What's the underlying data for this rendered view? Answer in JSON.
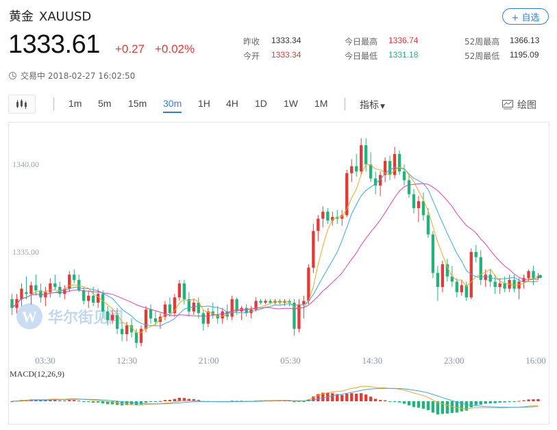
{
  "header": {
    "name": "黄金",
    "symbol": "XAUUSD",
    "follow_label": "+ 自选",
    "price": "1333.61",
    "change": "+0.27",
    "change_pct": "+0.02%",
    "status": "交易中 2018-02-27 16:02:50"
  },
  "stats": {
    "prev_close_label": "昨收",
    "prev_close": "1333.34",
    "open_label": "今开",
    "open": "1333.34",
    "high_label": "今日最高",
    "high": "1336.74",
    "low_label": "今日最低",
    "low": "1331.18",
    "w52_high_label": "52周最高",
    "w52_high": "1366.13",
    "w52_low_label": "52周最低",
    "w52_low": "1195.09"
  },
  "toolbar": {
    "periods": [
      "1m",
      "5m",
      "15m",
      "30m",
      "1H",
      "4H",
      "1D",
      "1W",
      "1M"
    ],
    "active_period": "30m",
    "indicator_label": "指标",
    "draw_label": "绘图"
  },
  "watermark": "华尔街见闻",
  "colors": {
    "up": "#e53935",
    "down": "#20b37a",
    "ma_fast": "#f5a623",
    "ma_mid": "#38a8e8",
    "ma_slow": "#e040b0",
    "accent": "#2d7de0"
  },
  "chart_data": [
    {
      "type": "candlestick",
      "interval": "30m",
      "ylim": [
        1329.4,
        1342.2
      ],
      "y_ticks": [
        1340.0,
        1335.0
      ],
      "y_tick_labels": [
        "1340.00",
        "1335.00"
      ],
      "x_tick_labels": [
        "03:30",
        "12:30",
        "21:00",
        "05:30",
        "14:30",
        "23:00",
        "16:00"
      ],
      "candles": [
        [
          1332.3,
          1332.6,
          1331.4,
          1331.8
        ],
        [
          1331.8,
          1332.6,
          1331.5,
          1332.3
        ],
        [
          1332.3,
          1333.2,
          1331.9,
          1332.9
        ],
        [
          1332.7,
          1333.6,
          1332.3,
          1332.6
        ],
        [
          1332.6,
          1333.3,
          1332.0,
          1333.1
        ],
        [
          1333.1,
          1333.7,
          1332.5,
          1332.8
        ],
        [
          1332.8,
          1333.2,
          1332.1,
          1332.4
        ],
        [
          1332.4,
          1333.0,
          1331.9,
          1332.7
        ],
        [
          1332.7,
          1333.5,
          1332.4,
          1333.2
        ],
        [
          1333.2,
          1333.7,
          1332.8,
          1333.0
        ],
        [
          1333.0,
          1333.3,
          1332.4,
          1332.6
        ],
        [
          1332.6,
          1333.1,
          1332.3,
          1332.9
        ],
        [
          1332.9,
          1333.9,
          1332.7,
          1333.7
        ],
        [
          1333.7,
          1334.0,
          1333.2,
          1333.4
        ],
        [
          1333.4,
          1333.7,
          1332.7,
          1332.8
        ],
        [
          1332.8,
          1333.0,
          1332.0,
          1332.2
        ],
        [
          1332.2,
          1332.8,
          1331.8,
          1332.5
        ],
        [
          1332.5,
          1333.0,
          1331.9,
          1332.1
        ],
        [
          1332.1,
          1332.9,
          1331.8,
          1332.6
        ],
        [
          1332.6,
          1332.8,
          1331.2,
          1331.6
        ],
        [
          1331.6,
          1331.9,
          1330.8,
          1331.1
        ],
        [
          1331.1,
          1331.7,
          1330.9,
          1331.4
        ],
        [
          1331.4,
          1331.8,
          1330.3,
          1330.6
        ],
        [
          1330.6,
          1331.0,
          1329.9,
          1330.3
        ],
        [
          1330.3,
          1331.0,
          1329.9,
          1330.8
        ],
        [
          1330.8,
          1331.2,
          1330.1,
          1330.4
        ],
        [
          1330.4,
          1330.6,
          1329.5,
          1329.8
        ],
        [
          1329.8,
          1330.8,
          1329.6,
          1330.6
        ],
        [
          1330.6,
          1331.9,
          1330.4,
          1331.7
        ],
        [
          1331.7,
          1332.0,
          1330.9,
          1331.2
        ],
        [
          1331.2,
          1331.6,
          1330.8,
          1331.0
        ],
        [
          1331.0,
          1331.5,
          1330.6,
          1331.3
        ],
        [
          1331.3,
          1332.2,
          1331.1,
          1332.0
        ],
        [
          1332.0,
          1332.4,
          1331.3,
          1331.5
        ],
        [
          1331.5,
          1332.6,
          1331.3,
          1332.4
        ],
        [
          1332.4,
          1333.4,
          1332.2,
          1333.2
        ],
        [
          1333.2,
          1333.4,
          1332.0,
          1332.3
        ],
        [
          1332.3,
          1332.7,
          1331.3,
          1331.6
        ],
        [
          1331.6,
          1332.3,
          1331.4,
          1332.1
        ],
        [
          1332.1,
          1332.4,
          1331.2,
          1331.5
        ],
        [
          1331.5,
          1331.7,
          1330.5,
          1330.9
        ],
        [
          1330.9,
          1331.8,
          1330.7,
          1331.6
        ],
        [
          1331.6,
          1332.1,
          1331.2,
          1331.4
        ],
        [
          1331.4,
          1331.9,
          1330.9,
          1331.2
        ],
        [
          1331.2,
          1331.8,
          1330.9,
          1331.6
        ],
        [
          1331.6,
          1332.0,
          1331.1,
          1331.3
        ],
        [
          1331.3,
          1332.5,
          1331.1,
          1332.3
        ],
        [
          1332.3,
          1332.4,
          1331.4,
          1331.6
        ],
        [
          1331.6,
          1331.9,
          1331.1,
          1331.8
        ],
        [
          1331.8,
          1332.0,
          1331.3,
          1331.5
        ],
        [
          1331.5,
          1331.9,
          1331.2,
          1331.7
        ],
        [
          1331.7,
          1332.4,
          1331.6,
          1332.2
        ],
        [
          1332.2,
          1332.3,
          1332.0,
          1332.1
        ],
        [
          1332.1,
          1332.3,
          1332.0,
          1332.2
        ],
        [
          1332.2,
          1332.3,
          1332.0,
          1332.1
        ],
        [
          1332.1,
          1332.3,
          1332.0,
          1332.2
        ],
        [
          1332.2,
          1332.3,
          1332.0,
          1332.1
        ],
        [
          1332.1,
          1332.3,
          1331.9,
          1332.2
        ],
        [
          1332.2,
          1332.3,
          1331.9,
          1332.1
        ],
        [
          1332.1,
          1332.3,
          1330.2,
          1330.6
        ],
        [
          1330.6,
          1332.3,
          1330.4,
          1332.0
        ],
        [
          1332.0,
          1332.5,
          1331.2,
          1332.2
        ],
        [
          1332.2,
          1334.3,
          1332.0,
          1334.1
        ],
        [
          1334.1,
          1336.6,
          1333.8,
          1336.2
        ],
        [
          1336.2,
          1337.1,
          1335.6,
          1336.9
        ],
        [
          1336.9,
          1337.6,
          1336.4,
          1337.3
        ],
        [
          1337.3,
          1337.5,
          1336.6,
          1336.8
        ],
        [
          1336.8,
          1337.3,
          1336.5,
          1337.0
        ],
        [
          1337.0,
          1337.4,
          1336.6,
          1336.9
        ],
        [
          1336.9,
          1337.4,
          1336.5,
          1337.1
        ],
        [
          1337.1,
          1339.7,
          1337.0,
          1339.5
        ],
        [
          1339.5,
          1340.3,
          1339.0,
          1339.9
        ],
        [
          1339.9,
          1340.6,
          1339.3,
          1339.6
        ],
        [
          1339.6,
          1341.5,
          1339.4,
          1341.1
        ],
        [
          1341.1,
          1341.5,
          1339.6,
          1340.0
        ],
        [
          1340.0,
          1340.7,
          1339.0,
          1339.2
        ],
        [
          1339.2,
          1339.6,
          1338.3,
          1338.8
        ],
        [
          1338.8,
          1339.6,
          1338.2,
          1339.4
        ],
        [
          1339.4,
          1340.4,
          1339.0,
          1340.2
        ],
        [
          1340.2,
          1340.5,
          1339.1,
          1339.4
        ],
        [
          1339.4,
          1341.0,
          1339.2,
          1340.6
        ],
        [
          1340.6,
          1340.8,
          1339.4,
          1339.6
        ],
        [
          1339.6,
          1340.0,
          1338.8,
          1339.1
        ],
        [
          1339.1,
          1339.4,
          1338.1,
          1338.3
        ],
        [
          1338.3,
          1338.6,
          1337.2,
          1337.5
        ],
        [
          1337.5,
          1338.2,
          1336.7,
          1337.9
        ],
        [
          1337.9,
          1338.4,
          1336.8,
          1337.1
        ],
        [
          1337.1,
          1337.5,
          1335.8,
          1336.0
        ],
        [
          1336.0,
          1336.2,
          1333.5,
          1333.8
        ],
        [
          1333.8,
          1334.2,
          1332.2,
          1333.0
        ],
        [
          1333.0,
          1334.5,
          1332.7,
          1334.3
        ],
        [
          1334.3,
          1334.6,
          1333.3,
          1333.6
        ],
        [
          1333.6,
          1334.2,
          1333.0,
          1333.3
        ],
        [
          1333.3,
          1333.5,
          1332.4,
          1332.7
        ],
        [
          1332.7,
          1333.4,
          1332.5,
          1333.1
        ],
        [
          1333.1,
          1333.3,
          1332.2,
          1332.4
        ],
        [
          1332.4,
          1335.2,
          1332.3,
          1335.0
        ],
        [
          1335.0,
          1335.4,
          1334.4,
          1334.7
        ],
        [
          1334.7,
          1335.1,
          1333.1,
          1333.4
        ],
        [
          1333.4,
          1334.0,
          1333.0,
          1333.7
        ],
        [
          1333.7,
          1334.0,
          1333.0,
          1333.3
        ],
        [
          1333.3,
          1333.7,
          1332.6,
          1333.0
        ],
        [
          1333.0,
          1333.5,
          1332.6,
          1333.2
        ],
        [
          1333.2,
          1333.6,
          1332.7,
          1332.9
        ],
        [
          1332.9,
          1333.7,
          1332.7,
          1333.4
        ],
        [
          1333.4,
          1333.7,
          1332.7,
          1332.9
        ],
        [
          1332.9,
          1333.5,
          1332.3,
          1333.3
        ],
        [
          1333.3,
          1333.7,
          1332.9,
          1333.5
        ],
        [
          1333.5,
          1334.0,
          1333.3,
          1333.9
        ],
        [
          1333.9,
          1334.2,
          1333.1,
          1333.5
        ],
        [
          1333.5,
          1333.8,
          1333.4,
          1333.6
        ]
      ]
    },
    {
      "type": "bar",
      "title": "MACD(12,26,9)"
    }
  ]
}
